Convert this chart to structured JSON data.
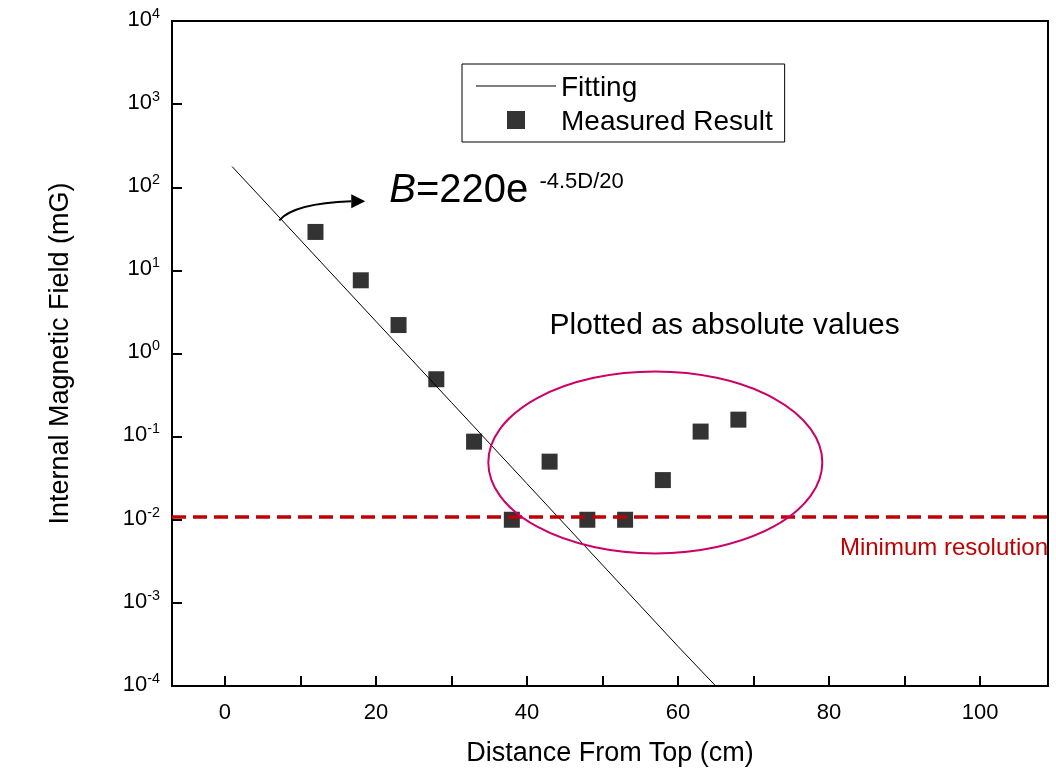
{
  "chart_data": {
    "type": "scatter",
    "xlabel": "Distance From Top (cm)",
    "ylabel": "Internal Magnetic Field (mG)",
    "series": [
      {
        "name": "Fitting",
        "type": "line",
        "color": "#000000",
        "marker": "none",
        "line_style": "solid",
        "x": [
          1,
          10,
          20,
          30,
          40,
          50,
          60,
          65
        ],
        "values": [
          175.7,
          23.2,
          2.44,
          0.258,
          0.0272,
          0.00286,
          0.0003,
          0.0001
        ]
      },
      {
        "name": "Measured Result",
        "color": "#000000",
        "marker": "square",
        "x": [
          12,
          18,
          23,
          28,
          33,
          38,
          43,
          48,
          53,
          58,
          63,
          68
        ],
        "values": [
          29,
          7.6,
          2.2,
          0.49,
          0.087,
          0.01,
          0.05,
          0.01,
          0.01,
          0.03,
          0.115,
          0.16
        ]
      }
    ],
    "log": "y",
    "xlim": [
      -7,
      109
    ],
    "xticks": [
      0,
      {
        "value": 10,
        "label": null
      },
      20,
      {
        "value": 30,
        "label": null
      },
      40,
      {
        "value": 50,
        "label": null
      },
      60,
      {
        "value": 70,
        "label": null
      },
      80,
      {
        "value": 90,
        "label": null
      },
      100
    ],
    "ylim": [
      0.0001,
      10000
    ],
    "yticks": [
      {
        "value": 0.0001,
        "label": "10$^{-4}$"
      },
      {
        "value": 0.001,
        "label": "10$^{-3}$"
      },
      {
        "value": 0.01,
        "label": "10$^{-2}$"
      },
      {
        "value": 0.1,
        "label": "10$^{-1}$"
      },
      {
        "value": 1,
        "label": "10$^{0}$"
      },
      {
        "value": 10,
        "label": "10$^{1}$"
      },
      {
        "value": 100,
        "label": "10$^{2}$"
      },
      {
        "value": 1000,
        "label": "10$^{3}$"
      },
      {
        "value": 10000,
        "label": "10$^{4}$"
      }
    ],
    "ref_lines": [
      {
        "axis": "y",
        "value": 0.011,
        "label": "Minimum resolution",
        "color": "#c00000",
        "line_style": "dashed"
      }
    ],
    "annotations": [
      {
        "text": "B=220e $^{-4.5D/20}$",
        "x": 7.2,
        "y": 40
      },
      "Plotted as absolute values"
    ],
    "legend": "top",
    "grid": false
  }
}
